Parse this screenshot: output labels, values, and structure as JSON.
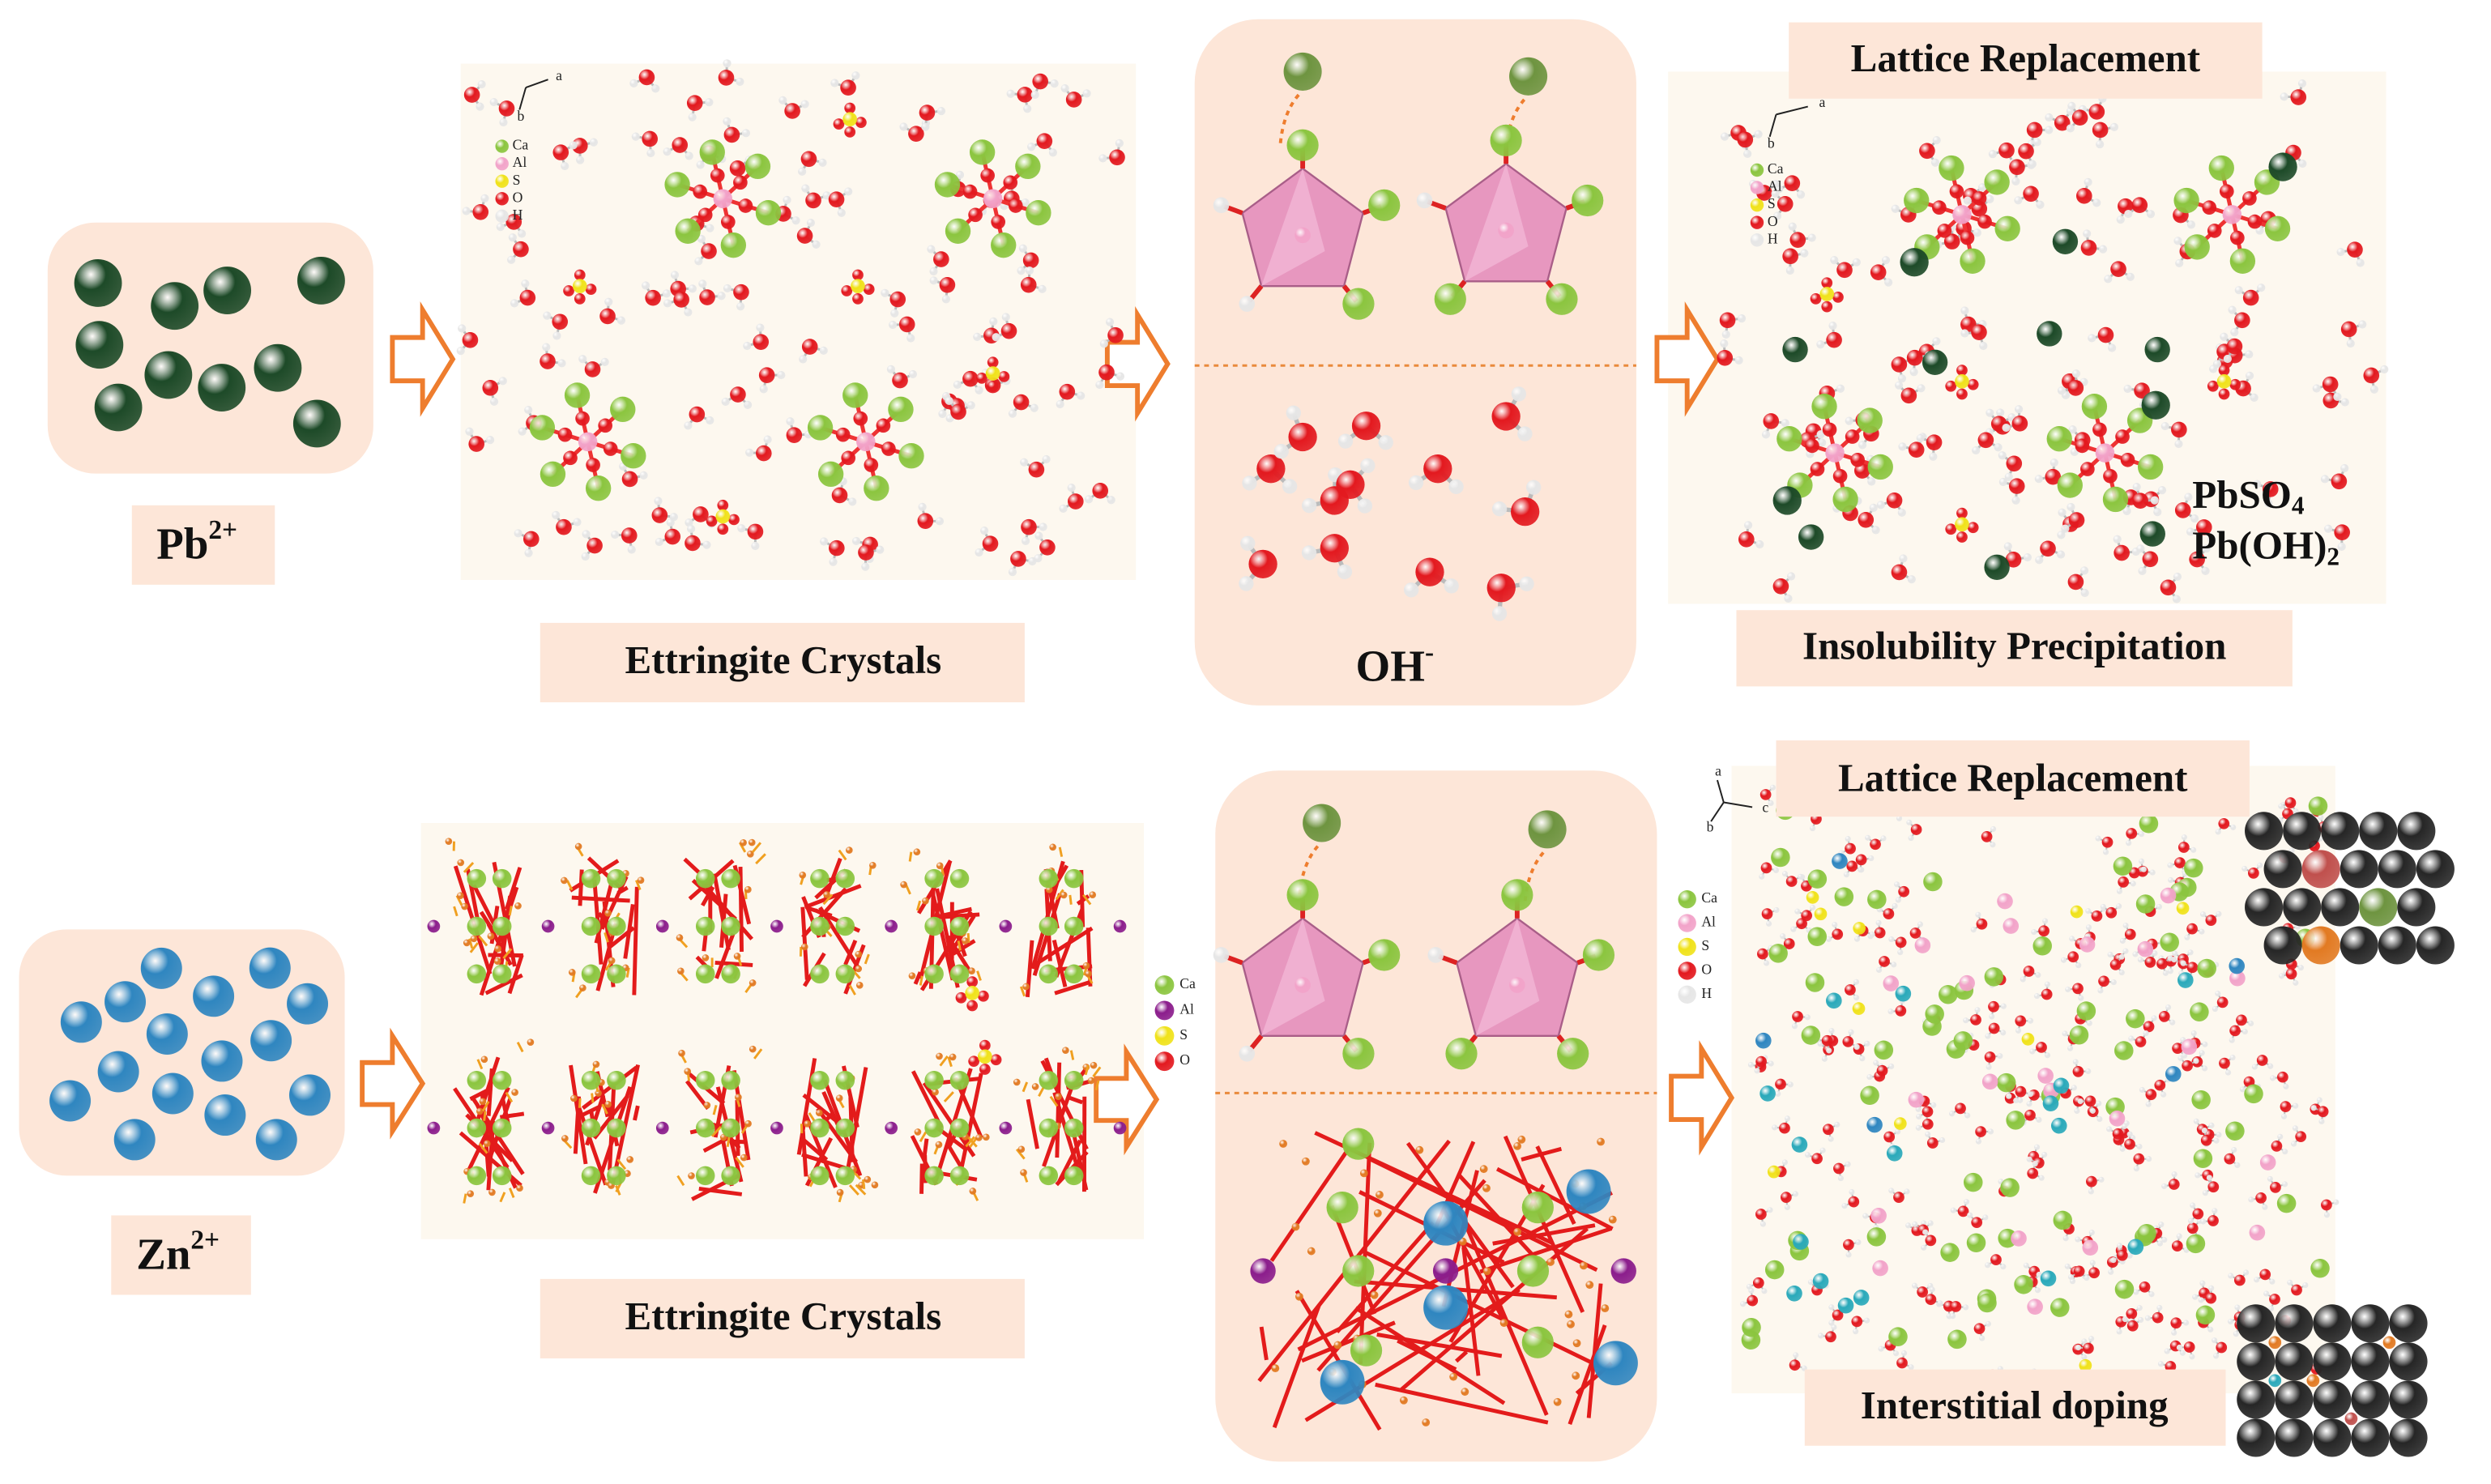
{
  "top_row": {
    "ion": {
      "symbol": "Pb",
      "charge": "2+"
    },
    "crystal_label": "Ettringite Crystals",
    "crystal_legend": [
      "Ca",
      "Al",
      "S",
      "O",
      "H"
    ],
    "crystal_axes": [
      "a",
      "b"
    ],
    "mechanism_label": {
      "symbol": "OH",
      "charge": "-"
    },
    "result_title": "Lattice Replacement",
    "result_legend": [
      "Ca",
      "Al",
      "S",
      "O",
      "H"
    ],
    "result_axes": [
      "a",
      "b"
    ],
    "products": [
      {
        "formula": "PbSO",
        "subscript": "4"
      },
      {
        "formula": "Pb(OH)",
        "subscript": "2"
      }
    ],
    "result_label": "Insolubility Precipitation"
  },
  "bottom_row": {
    "ion": {
      "symbol": "Zn",
      "charge": "2+"
    },
    "crystal_label": "Ettringite Crystals",
    "crystal_legend": [
      "Ca",
      "Al",
      "S",
      "O"
    ],
    "result_title": "Lattice Replacement",
    "result_legend": [
      "Ca",
      "Al",
      "S",
      "O",
      "H"
    ],
    "result_axes": [
      "a",
      "b",
      "c"
    ],
    "result_label": "Interstitial doping"
  }
}
